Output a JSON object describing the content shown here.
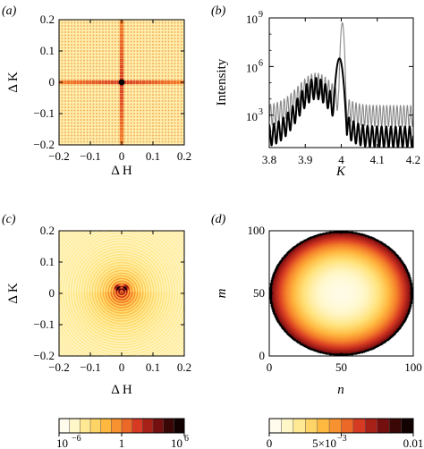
{
  "figure": {
    "panels": [
      {
        "id": "a",
        "label": "(a)"
      },
      {
        "id": "b",
        "label": "(b)"
      },
      {
        "id": "c",
        "label": "(c)"
      },
      {
        "id": "d",
        "label": "(d)"
      }
    ]
  },
  "chart_data": [
    {
      "panel": "a",
      "type": "heatmap",
      "description_source": "diffraction intensity map of crossed rods (log colour scale)",
      "xlabel": "Δ H",
      "ylabel": "Δ K",
      "xlim": [
        -0.2,
        0.2
      ],
      "ylim": [
        -0.2,
        0.2
      ],
      "xticks": [
        -0.2,
        -0.1,
        0,
        0.1,
        0.2
      ],
      "yticks": [
        -0.2,
        -0.1,
        0,
        0.1,
        0.2
      ],
      "xtick_labels": [
        "−0.2",
        "−0.1",
        "0",
        "0.1",
        "0.2"
      ],
      "ytick_labels": [
        "−0.2",
        "−0.1",
        "0",
        "0.1",
        "0.2"
      ],
      "grid_lines_per_axis": 41,
      "colorscale": "log"
    },
    {
      "panel": "b",
      "type": "line",
      "xlabel": "K",
      "ylabel": "Intensity",
      "xlim": [
        3.8,
        4.2
      ],
      "ylim_log10": [
        1,
        9
      ],
      "yscale": "log",
      "xticks": [
        3.8,
        3.9,
        4.0,
        4.1,
        4.2
      ],
      "xtick_labels": [
        "3.8",
        "3.9",
        "4",
        "4.1",
        "4.2"
      ],
      "yticks_log10": [
        3,
        6,
        9
      ],
      "ytick_labels": [
        "3",
        "6",
        "9"
      ],
      "ytick_base": "10",
      "series": [
        {
          "color": "#000000",
          "width": 2.0,
          "peak_x": 3.995,
          "peak_log10": 6.5,
          "fringe_period": 0.013,
          "background_log10": 2.3
        },
        {
          "color": "#888888",
          "width": 1.1,
          "peak_x": 4.003,
          "peak_log10": 8.7,
          "fringe_period": 0.0095,
          "background_log10": 3.6
        }
      ]
    },
    {
      "panel": "c",
      "type": "heatmap",
      "xlabel": "Δ H",
      "ylabel": "Δ K",
      "xlim": [
        -0.2,
        0.2
      ],
      "ylim": [
        -0.2,
        0.2
      ],
      "xticks": [
        -0.2,
        -0.1,
        0,
        0.1,
        0.2
      ],
      "yticks": [
        -0.2,
        -0.1,
        0,
        0.1,
        0.2
      ],
      "xtick_labels": [
        "−0.2",
        "−0.1",
        "0",
        "0.1",
        "0.2"
      ],
      "ytick_labels": [
        "−0.2",
        "−0.1",
        "0",
        "0.1",
        "0.2"
      ],
      "colorscale": "log",
      "source_point": [
        0,
        0.005
      ]
    },
    {
      "panel": "d",
      "type": "heatmap",
      "xlabel": "n",
      "ylabel": "m",
      "xlim": [
        0,
        100
      ],
      "ylim": [
        0,
        100
      ],
      "xticks": [
        0,
        50,
        100
      ],
      "yticks": [
        0,
        50,
        100
      ],
      "xtick_labels": [
        "0",
        "50",
        "100"
      ],
      "ytick_labels": [
        "0",
        "50",
        "100"
      ],
      "disk_center": [
        50,
        50
      ],
      "disk_radius": 50,
      "value_range": [
        0,
        0.01
      ]
    },
    {
      "type": "colorbar",
      "under_panel": "c",
      "scale": "log",
      "tick_labels": [
        "10",
        "−6",
        "1",
        "10",
        "6"
      ],
      "tick_positions": [
        0,
        0.5,
        1
      ]
    },
    {
      "type": "colorbar",
      "under_panel": "d",
      "scale": "linear",
      "tick_labels": [
        "0",
        "5×10",
        "−3",
        "0.01"
      ],
      "tick_positions": [
        0,
        0.5,
        1
      ]
    }
  ],
  "colors": {
    "colormap": [
      "#ffffff",
      "#fff7c8",
      "#ffe27a",
      "#ffb840",
      "#f57f2a",
      "#d63a22",
      "#8f1414",
      "#3a0606",
      "#000000"
    ]
  }
}
